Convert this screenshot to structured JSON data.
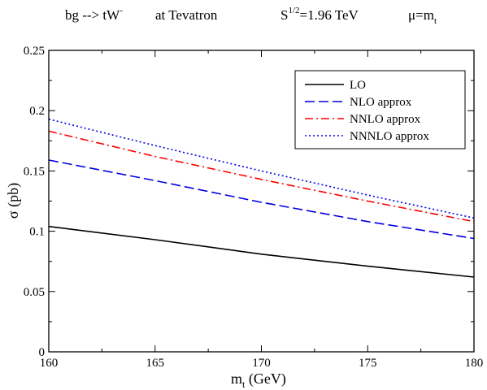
{
  "chart_data": {
    "type": "line",
    "title": {
      "process": "bg --> tW",
      "process_sup": "-",
      "collider": "at  Tevatron",
      "energy_base": "S",
      "energy_sup": "1/2",
      "energy_value": "=1.96 TeV",
      "scale_base": "μ=m",
      "scale_sub": "t"
    },
    "xlabel": {
      "base": "m",
      "sub": "t",
      "rest": " (GeV)"
    },
    "ylabel": "σ  (pb)",
    "xlim": [
      160,
      180
    ],
    "ylim": [
      0,
      0.25
    ],
    "x_ticks": [
      "160",
      "165",
      "170",
      "175",
      "180"
    ],
    "y_ticks": [
      "0",
      "0.05",
      "0.1",
      "0.15",
      "0.2",
      "0.25"
    ],
    "x_tick_values": [
      160,
      165,
      170,
      175,
      180
    ],
    "y_tick_values": [
      0,
      0.05,
      0.1,
      0.15,
      0.2,
      0.25
    ],
    "grid": false,
    "legend_position": "top-right",
    "series": [
      {
        "name": "LO",
        "color": "#000000",
        "dash": "solid",
        "x": [
          160,
          165,
          170,
          175,
          180
        ],
        "y": [
          0.104,
          0.093,
          0.081,
          0.071,
          0.062
        ]
      },
      {
        "name": "NLO approx",
        "color": "#0000e0",
        "dash": "dashed",
        "x": [
          160,
          165,
          170,
          175,
          180
        ],
        "y": [
          0.159,
          0.142,
          0.124,
          0.108,
          0.094
        ]
      },
      {
        "name": "NNLO approx",
        "color": "#ff0000",
        "dash": "dash-dot",
        "x": [
          160,
          165,
          170,
          175,
          180
        ],
        "y": [
          0.183,
          0.162,
          0.143,
          0.125,
          0.108
        ]
      },
      {
        "name": "NNNLO approx",
        "color": "#0000e0",
        "dash": "dotted",
        "x": [
          160,
          165,
          170,
          175,
          180
        ],
        "y": [
          0.193,
          0.171,
          0.15,
          0.13,
          0.111
        ]
      }
    ]
  }
}
